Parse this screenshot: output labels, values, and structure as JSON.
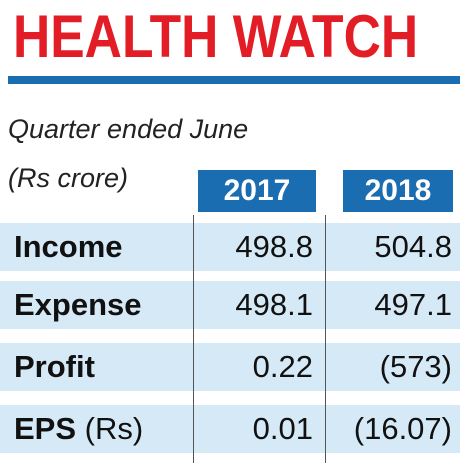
{
  "title": "HEALTH WATCH",
  "subtitle_line1": "Quarter ended June",
  "subtitle_line2": "(Rs crore)",
  "colors": {
    "title": "#e31d25",
    "accent": "#1a6db0",
    "row_background": "#d6e9f7"
  },
  "chart_data": {
    "type": "table",
    "columns": [
      "2017",
      "2018"
    ],
    "rows": [
      {
        "label": "Income",
        "unit": "",
        "v2017": "498.8",
        "v2018": "504.8"
      },
      {
        "label": "Expense",
        "unit": "",
        "v2017": "498.1",
        "v2018": "497.1"
      },
      {
        "label": "Profit",
        "unit": "",
        "v2017": "0.22",
        "v2018": "(573)"
      },
      {
        "label": "EPS",
        "unit": "(Rs)",
        "v2017": "0.01",
        "v2018": "(16.07)"
      }
    ]
  }
}
